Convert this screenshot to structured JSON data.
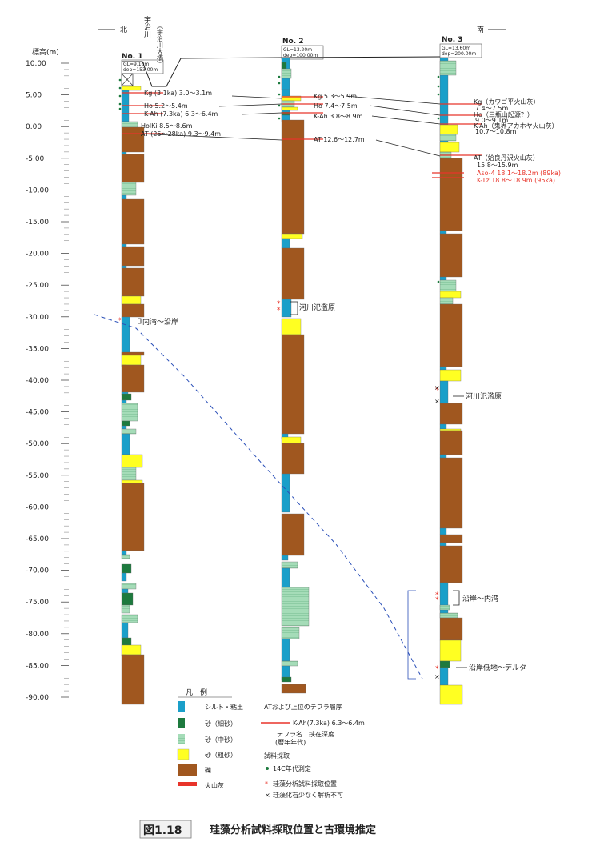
{
  "directions": {
    "north": "北",
    "south": "南"
  },
  "river_label": "宇治川",
  "river_label2": "（宇治川大橋）",
  "axis": {
    "label": "標高(m)",
    "ticks": [
      "10.00",
      "5.00",
      "0.00",
      "-5.00",
      "-10.00",
      "-15.00",
      "-20.00",
      "-25.00",
      "-30.00",
      "-35.00",
      "-40.00",
      "-45.00",
      "-50.00",
      "-55.00",
      "-60.00",
      "-65.00",
      "-70.00",
      "-75.00",
      "-80.00",
      "-85.00",
      "-90.00"
    ]
  },
  "boreholes": [
    {
      "name": "No. 1",
      "gl": "GL=9.10m",
      "dep": "dep=153.00m"
    },
    {
      "name": "No. 2",
      "gl": "GL=13.20m",
      "dep": "dep=100.00m"
    },
    {
      "name": "No. 3",
      "gl": "GL=13.60m",
      "dep": "dep=200.00m"
    }
  ],
  "tephra_labels": {
    "no1": [
      "Kg (3.1ka) 3.0～3.1m",
      "Ho 5.2～5.4m",
      "K-Ah (7.3ka) 6.3～6.4m",
      "HolKi 8.5～8.6m",
      "AT (25～28ka) 9.3～9.4m"
    ],
    "no2": [
      "Kg 5.3～5.9m",
      "Ho 7.4～7.5m",
      "K-Ah 3.8～8.9m",
      "AT 12.6～12.7m"
    ],
    "no3": [
      "Kg（カワゴ平火山灰）",
      "7.4～7.5m",
      "Ho（三瓶山起源？）",
      "9.0～9.1m",
      "K-Ah（鬼界アカホヤ火山灰）",
      "10.7～10.8m",
      "AT（姶良丹沢火山灰）",
      "15.8～15.9m",
      "Aso-4 18.1～18.2m (89ka)",
      "K-Tz 18.8～18.9m (95ka)"
    ]
  },
  "environment_labels": {
    "no1": "内湾～沿岸",
    "no2": "河川氾濫原",
    "no3_a": "河川氾濫原",
    "no3_b": "沿岸～内湾",
    "no3_c": "沿岸低地～デルタ"
  },
  "legend": {
    "title": "凡　例",
    "items": [
      "シルト・粘土",
      "砂（細砂）",
      "砂（中砂）",
      "砂（粗砂）",
      "礫",
      "火山灰"
    ],
    "tephra_title": "ATおよび上位のテフラ層序",
    "tephra_example": "K-Ah(7.3ka) 6.3～6.4m",
    "tephra_desc1": "テフラ名　挟在深度",
    "tephra_desc2": "(暦年年代)",
    "sample_title": "試料採取",
    "samples": [
      "14C年代測定",
      "珪藻分析試料採取位置",
      "珪藻化石少なく解析不可"
    ]
  },
  "caption": {
    "fig": "図1.18",
    "title": "珪藻分析試料採取位置と古環境推定"
  },
  "colors": {
    "silt": "#1a9fc9",
    "fine_sand": "#1d7a3e",
    "medium_sand": "#9fd9b5",
    "coarse_sand": "#ffff22",
    "gravel": "#a0571f",
    "ash": "#e8342a"
  }
}
